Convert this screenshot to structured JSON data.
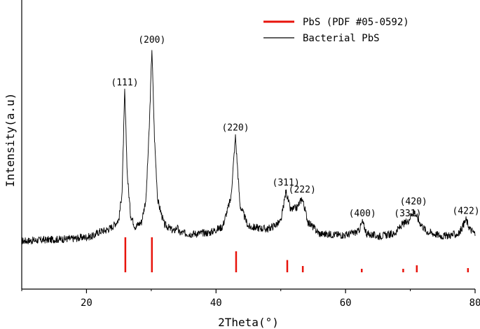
{
  "chart_data": {
    "type": "line",
    "xlabel": "2Theta(°)",
    "ylabel": "Intensity(a.u)",
    "xlim": [
      10,
      80
    ],
    "ylim": [
      0,
      100
    ],
    "xticks": [
      20,
      40,
      60,
      80
    ],
    "y_tick_labels": false,
    "grid": false,
    "legend_position": "top-right",
    "series": [
      {
        "name": "Bacterial PbS",
        "kind": "xrd-pattern",
        "color": "#000000",
        "x": [
          10.0,
          14.0,
          18.0,
          21.0,
          22.0,
          23.0,
          24.0,
          25.0,
          25.5,
          25.9,
          26.3,
          26.8,
          27.5,
          28.5,
          29.2,
          29.7,
          30.1,
          30.5,
          31.0,
          32.0,
          33.5,
          34.0,
          34.3,
          36.0,
          39.0,
          41.0,
          42.3,
          43.0,
          43.7,
          45.0,
          48.0,
          50.0,
          50.8,
          51.5,
          52.5,
          53.3,
          54.2,
          56.0,
          60.0,
          62.0,
          62.6,
          63.3,
          65.0,
          67.5,
          68.8,
          69.6,
          70.5,
          71.4,
          72.5,
          75.0,
          77.5,
          78.6,
          79.2,
          80.0
        ],
        "y": [
          7,
          7.5,
          8,
          9,
          11,
          11.5,
          13,
          16,
          28,
          70,
          35,
          18,
          13,
          15,
          25,
          55,
          88,
          50,
          24,
          14,
          11,
          13,
          10.5,
          10,
          10.5,
          13,
          25,
          51,
          22,
          13,
          12,
          15,
          28,
          20,
          21,
          25,
          15,
          10,
          9.5,
          11,
          15,
          10,
          9,
          10,
          14,
          15,
          20,
          15,
          11,
          9,
          10,
          16,
          12,
          10
        ]
      },
      {
        "name": "PbS (PDF #05-0592)",
        "kind": "reference-sticks",
        "color": "#e8140c",
        "x": [
          26.0,
          30.1,
          43.1,
          51.0,
          53.4,
          62.5,
          68.9,
          71.0,
          78.9
        ],
        "values": [
          100,
          100,
          60,
          35,
          18,
          10,
          10,
          20,
          12
        ]
      }
    ],
    "peak_labels": [
      {
        "text": "(111)",
        "x": 25.9,
        "y": 70
      },
      {
        "text": "(200)",
        "x": 30.1,
        "y": 88
      },
      {
        "text": "(220)",
        "x": 43.0,
        "y": 51
      },
      {
        "text": "(311)",
        "x": 50.8,
        "y": 28
      },
      {
        "text": "(222)",
        "x": 53.3,
        "y": 25
      },
      {
        "text": "(400)",
        "x": 62.6,
        "y": 15
      },
      {
        "text": "(331)",
        "x": 69.6,
        "y": 15
      },
      {
        "text": "(420)",
        "x": 70.5,
        "y": 20
      },
      {
        "text": "(422)",
        "x": 78.6,
        "y": 16
      }
    ]
  }
}
